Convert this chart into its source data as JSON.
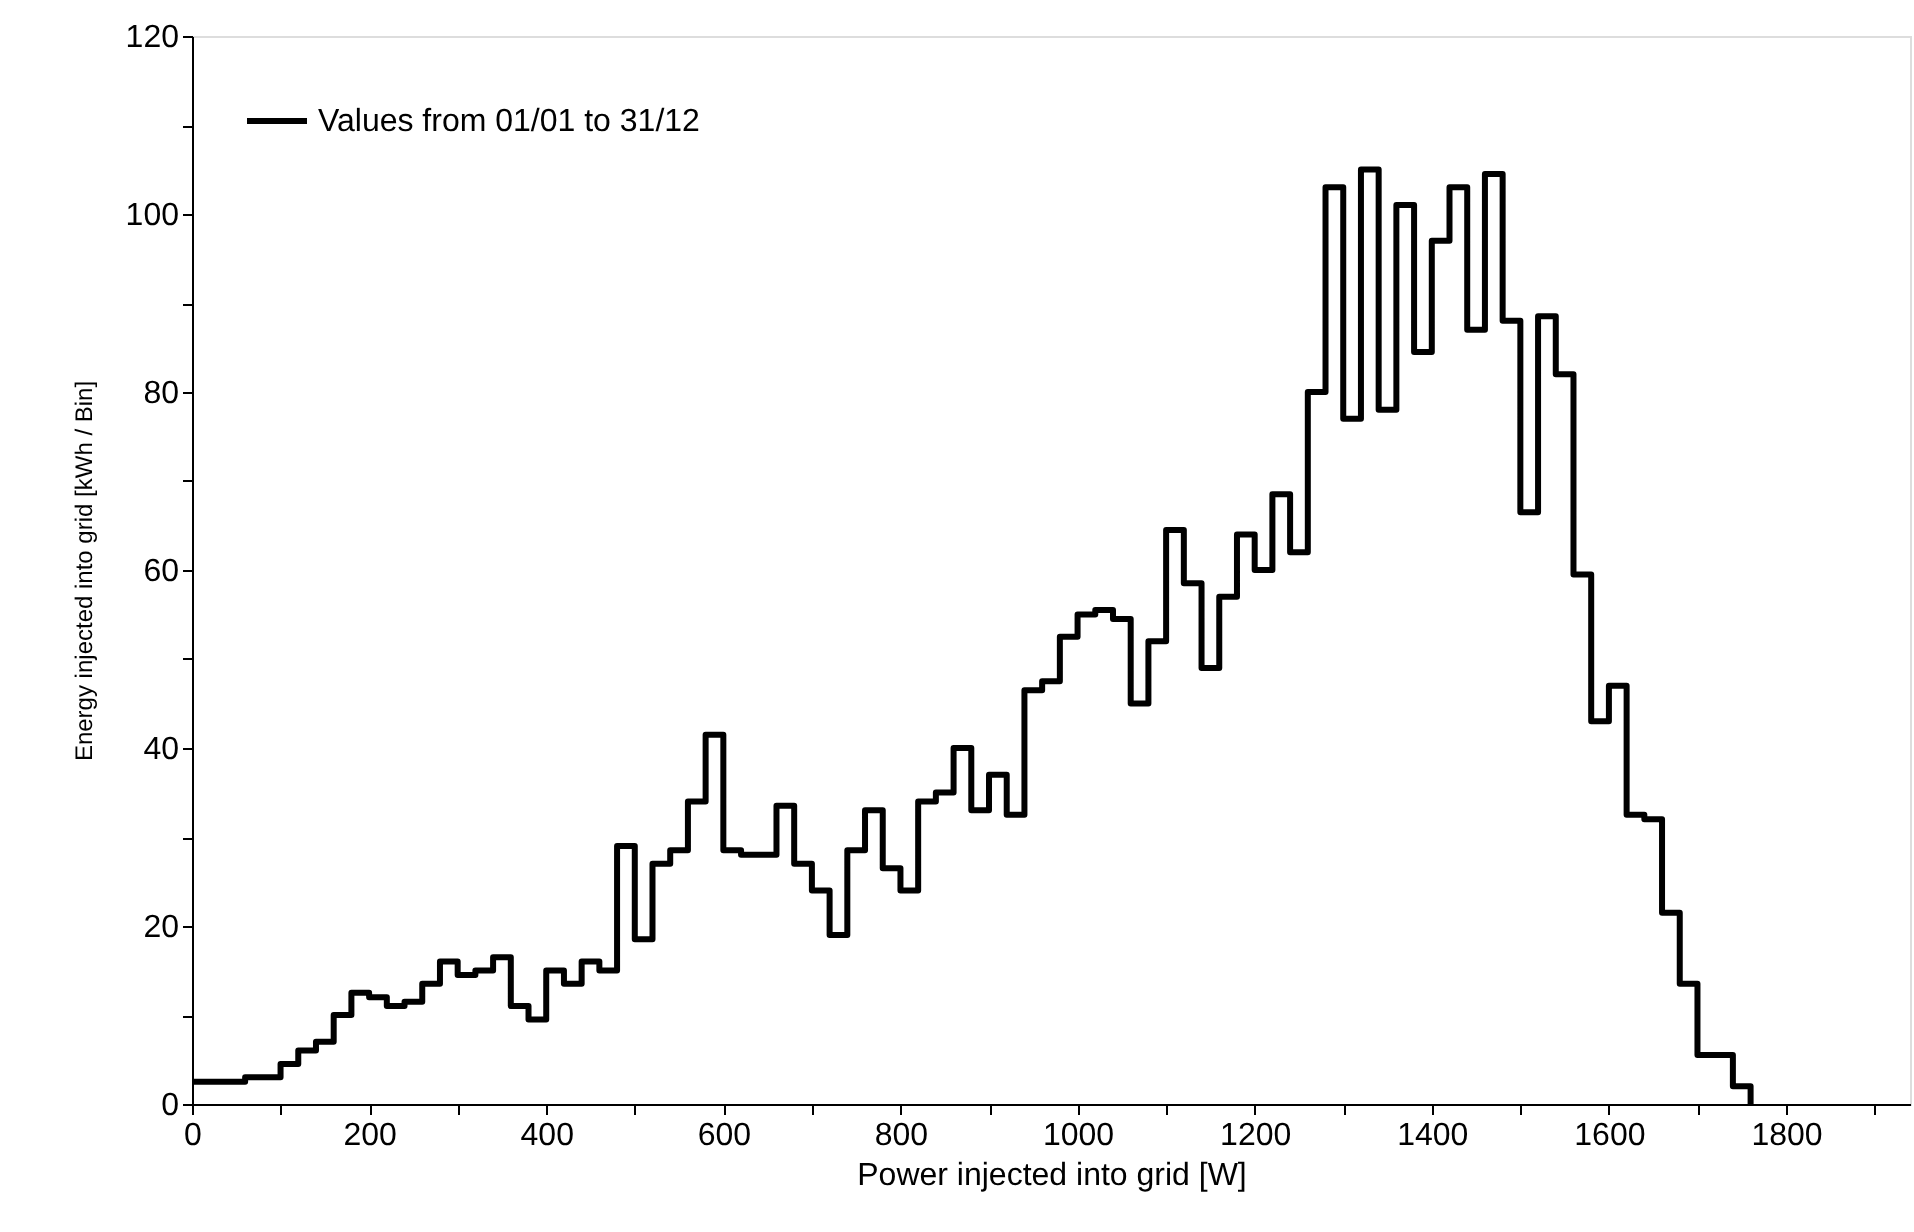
{
  "chart_data": {
    "type": "histogram",
    "xlabel": "Power injected into grid [W]",
    "ylabel": "Energy   injected   into   grid   [kWh   /   Bin]",
    "bins": [
      0,
      20,
      40,
      60,
      80,
      100,
      120,
      140,
      160,
      180,
      200,
      220,
      240,
      260,
      280,
      300,
      320,
      340,
      360,
      380,
      400,
      420,
      440,
      460,
      480,
      500,
      520,
      540,
      560,
      580,
      600,
      620,
      640,
      660,
      680,
      700,
      720,
      740,
      760,
      780,
      800,
      820,
      840,
      860,
      880,
      900,
      920,
      940,
      960,
      980,
      1000,
      1020,
      1040,
      1060,
      1080,
      1100,
      1120,
      1140,
      1160,
      1180,
      1200,
      1220,
      1240,
      1260,
      1280,
      1300,
      1320,
      1340,
      1360,
      1380,
      1400,
      1420,
      1440,
      1460,
      1480,
      1500,
      1520,
      1540,
      1560,
      1580,
      1600,
      1620,
      1640,
      1660,
      1680,
      1700,
      1720,
      1740,
      1760
    ],
    "series": [
      {
        "name": "Values from 01/01 to 31/12",
        "color": "#000000",
        "values": [
          2.5,
          2.5,
          2.5,
          3,
          3,
          4.5,
          6,
          7,
          10,
          12.5,
          12,
          11,
          11.5,
          13.5,
          16,
          14.5,
          15,
          16.5,
          11,
          9.5,
          15,
          13.5,
          16,
          15,
          29,
          18.5,
          27,
          28.5,
          34,
          41.5,
          28.5,
          28,
          28,
          33.5,
          27,
          24,
          19,
          28.5,
          33,
          26.5,
          24,
          34,
          35,
          40,
          33,
          37,
          32.5,
          46.5,
          47.5,
          52.5,
          55,
          55.5,
          54.5,
          45,
          52,
          64.5,
          58.5,
          49,
          57,
          64,
          60,
          68.5,
          62,
          80,
          103,
          77,
          105,
          78,
          101,
          84.5,
          97,
          103,
          87,
          104.5,
          88,
          66.5,
          88.5,
          82,
          59.5,
          43,
          47,
          32.5,
          32,
          21.5,
          13.5,
          5.5,
          5.5,
          2
        ]
      }
    ],
    "xlim": [
      0,
      1940
    ],
    "ylim": [
      0,
      120
    ],
    "xticks": [
      0,
      {
        "value": 100,
        "label": null
      },
      200,
      {
        "value": 300,
        "label": null
      },
      400,
      {
        "value": 500,
        "label": null
      },
      600,
      {
        "value": 700,
        "label": null
      },
      800,
      {
        "value": 900,
        "label": null
      },
      1000,
      {
        "value": 1100,
        "label": null
      },
      1200,
      {
        "value": 1300,
        "label": null
      },
      1400,
      {
        "value": 1500,
        "label": null
      },
      1600,
      {
        "value": 1700,
        "label": null
      },
      1800,
      {
        "value": 1900,
        "label": null
      }
    ],
    "yticks": [
      0,
      {
        "value": 10,
        "label": null
      },
      20,
      {
        "value": 30,
        "label": null
      },
      40,
      {
        "value": 50,
        "label": null
      },
      60,
      {
        "value": 70,
        "label": null
      },
      80,
      {
        "value": 90,
        "label": null
      },
      100,
      {
        "value": 110,
        "label": null
      },
      120
    ],
    "legend": "top left",
    "grid": false
  }
}
